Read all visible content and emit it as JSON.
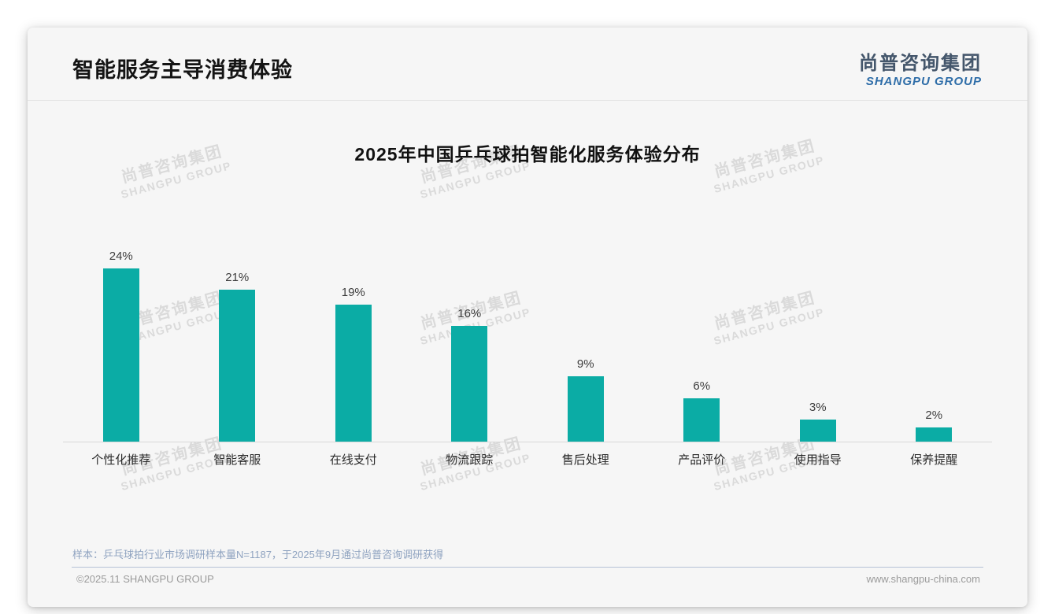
{
  "header": {
    "title": "智能服务主导消费体验",
    "logo_cn": "尚普咨询集团",
    "logo_en": "SHANGPU GROUP"
  },
  "chart_data": {
    "type": "bar",
    "title": "2025年中国乒乓球拍智能化服务体验分布",
    "categories": [
      "个性化推荐",
      "智能客服",
      "在线支付",
      "物流跟踪",
      "售后处理",
      "产品评价",
      "使用指导",
      "保养提醒"
    ],
    "values": [
      24,
      21,
      19,
      16,
      9,
      6,
      3,
      2
    ],
    "unit": "%",
    "value_labels": true,
    "bar_color": "#0baca5",
    "xlabel": "",
    "ylabel": "",
    "ylim": [
      0,
      26
    ],
    "grid": false,
    "legend": false,
    "baseline_color": "#d8d8d8"
  },
  "footnote": "样本：乒乓球拍行业市场调研样本量N=1187，于2025年9月通过尚普咨询调研获得",
  "footer": {
    "left": "©2025.11 SHANGPU GROUP",
    "right": "www.shangpu-china.com"
  },
  "watermark": {
    "line1": "尚普咨询集团",
    "line2": "SHANGPU GROUP"
  }
}
